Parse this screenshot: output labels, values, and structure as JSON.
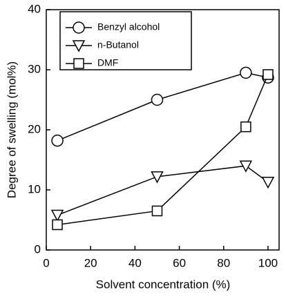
{
  "chart_data": {
    "type": "line",
    "xlabel": "Solvent concentration (%)",
    "ylabel": "Degree of swelling (mol%)",
    "x": [
      5,
      50,
      90,
      100
    ],
    "series": [
      {
        "name": "Benzyl alcohol",
        "color": "#000000",
        "marker": "circle",
        "values": [
          18.2,
          25,
          29.5,
          28.7
        ]
      },
      {
        "name": "n-Butanol",
        "color": "#000000",
        "marker": "triangle-down",
        "values": [
          5.8,
          12.2,
          14,
          11.3
        ]
      },
      {
        "name": "DMF",
        "color": "#000000",
        "marker": "square",
        "values": [
          4.2,
          6.5,
          20.5,
          29.2
        ]
      }
    ],
    "xlim": [
      0,
      105
    ],
    "xticks": [
      0,
      20,
      40,
      60,
      80,
      100
    ],
    "ylim": [
      0,
      40
    ],
    "yticks": [
      0,
      10,
      20,
      30,
      40
    ],
    "grid": false,
    "legend": "upper left"
  }
}
